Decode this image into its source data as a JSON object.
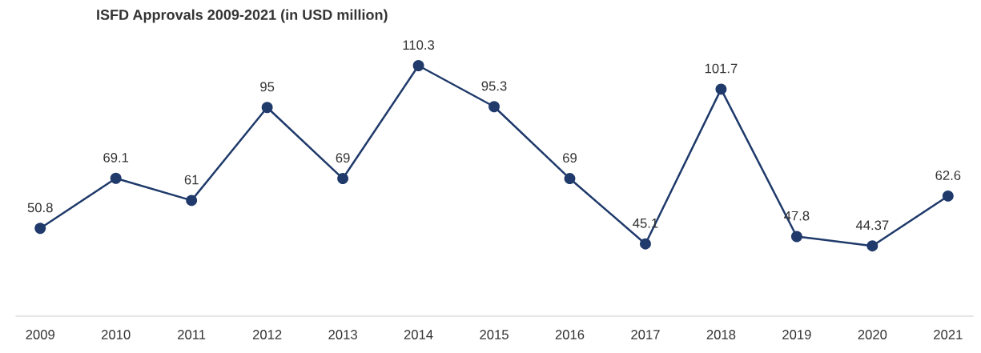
{
  "chart_data": {
    "type": "line",
    "title": "ISFD Approvals 2009-2021 (in USD million)",
    "categories": [
      "2009",
      "2010",
      "2011",
      "2012",
      "2013",
      "2014",
      "2015",
      "2016",
      "2017",
      "2018",
      "2019",
      "2020",
      "2021"
    ],
    "series": [
      {
        "color": "#1f3a6b",
        "values": [
          50.8,
          69.1,
          61,
          95,
          69,
          110.3,
          95.3,
          69,
          45.1,
          101.7,
          47.8,
          44.37,
          62.6
        ]
      }
    ],
    "data_labels": true,
    "marker": "circle",
    "line_style": "solid",
    "grid": false,
    "legend": false,
    "tick_labels": "x"
  }
}
